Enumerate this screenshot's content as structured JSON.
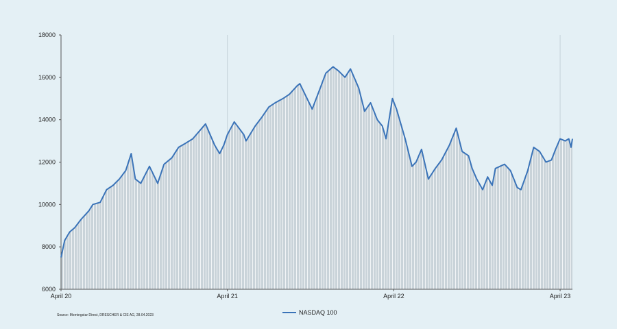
{
  "colors": {
    "background": "#e4f0f5",
    "line": "#3a73b8",
    "fill": "#c9d3d9",
    "fill_stripe": "#f2f5f7",
    "axis": "#555555"
  },
  "source_note": "Source: Morningstar Direct, DRESCHER & CIE AG, 28.04.2023",
  "chart_data": {
    "type": "area",
    "title": "",
    "xlabel": "",
    "ylabel": "",
    "ylim": [
      6000,
      18000
    ],
    "yticks": [
      6000,
      8000,
      10000,
      12000,
      14000,
      16000,
      18000
    ],
    "ytick_labels": [
      "6000",
      "8000",
      "10000",
      "12000",
      "14000",
      "16000",
      "18000"
    ],
    "xlim": [
      "2020-04-01",
      "2023-04-28"
    ],
    "xticks": [
      "2020-04-01",
      "2021-04-01",
      "2022-04-01",
      "2023-04-01"
    ],
    "xtick_labels": [
      "April 20",
      "April 21",
      "April 22",
      "April 23"
    ],
    "grid": false,
    "legend": "bottom-center",
    "series": [
      {
        "name": "NASDAQ 100",
        "x": [
          "2020-04-01",
          "2020-04-09",
          "2020-04-20",
          "2020-05-01",
          "2020-05-15",
          "2020-06-01",
          "2020-06-10",
          "2020-06-26",
          "2020-07-10",
          "2020-07-24",
          "2020-08-07",
          "2020-08-21",
          "2020-09-02",
          "2020-09-11",
          "2020-09-23",
          "2020-10-12",
          "2020-10-30",
          "2020-11-13",
          "2020-11-30",
          "2020-12-15",
          "2020-12-31",
          "2021-01-15",
          "2021-02-12",
          "2021-03-04",
          "2021-03-15",
          "2021-03-24",
          "2021-04-01",
          "2021-04-16",
          "2021-05-07",
          "2021-05-12",
          "2021-06-01",
          "2021-06-15",
          "2021-07-01",
          "2021-07-15",
          "2021-08-01",
          "2021-08-15",
          "2021-09-01",
          "2021-09-07",
          "2021-10-04",
          "2021-10-20",
          "2021-11-03",
          "2021-11-19",
          "2021-12-01",
          "2021-12-15",
          "2021-12-27",
          "2022-01-14",
          "2022-01-27",
          "2022-02-09",
          "2022-02-24",
          "2022-03-07",
          "2022-03-15",
          "2022-03-29",
          "2022-04-07",
          "2022-04-26",
          "2022-05-11",
          "2022-05-20",
          "2022-06-01",
          "2022-06-16",
          "2022-07-01",
          "2022-07-15",
          "2022-08-01",
          "2022-08-16",
          "2022-08-29",
          "2022-09-12",
          "2022-09-20",
          "2022-09-30",
          "2022-10-13",
          "2022-10-24",
          "2022-11-03",
          "2022-11-10",
          "2022-11-30",
          "2022-12-13",
          "2022-12-28",
          "2023-01-05",
          "2023-01-20",
          "2023-02-02",
          "2023-02-15",
          "2023-03-01",
          "2023-03-13",
          "2023-03-22",
          "2023-04-01",
          "2023-04-12",
          "2023-04-20",
          "2023-04-25",
          "2023-04-28"
        ],
        "values": [
          7500,
          8300,
          8700,
          8900,
          9300,
          9700,
          10000,
          10100,
          10700,
          10900,
          11200,
          11600,
          12400,
          11200,
          11000,
          11800,
          11000,
          11900,
          12200,
          12700,
          12900,
          13100,
          13800,
          12800,
          12400,
          12800,
          13300,
          13900,
          13300,
          13000,
          13700,
          14100,
          14600,
          14800,
          15000,
          15200,
          15600,
          15700,
          14500,
          15400,
          16200,
          16500,
          16300,
          16000,
          16400,
          15500,
          14400,
          14800,
          14000,
          13700,
          13100,
          15000,
          14500,
          13100,
          11800,
          12000,
          12600,
          11200,
          11700,
          12100,
          12800,
          13600,
          12500,
          12300,
          11700,
          11200,
          10700,
          11300,
          10900,
          11700,
          11900,
          11600,
          10800,
          10700,
          11600,
          12700,
          12500,
          12000,
          12100,
          12600,
          13100,
          13000,
          13100,
          12700,
          13100
        ]
      }
    ]
  }
}
